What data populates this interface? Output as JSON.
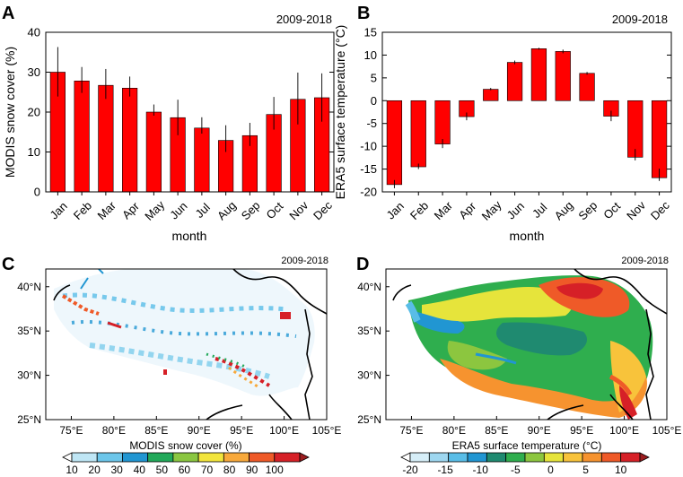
{
  "figure": {
    "colors": {
      "bar": "#ff0000",
      "axis": "#000000",
      "background": "#ffffff",
      "coastline": "#000000"
    }
  },
  "chart_data": [
    {
      "panel": "A",
      "type": "bar",
      "period": "2009-2018",
      "xlabel": "month",
      "ylabel": "MODIS snow cover (%)",
      "ylim": [
        0,
        40
      ],
      "yticks": [
        0,
        10,
        20,
        30,
        40
      ],
      "categories": [
        "Jan",
        "Feb",
        "Mar",
        "Apr",
        "May",
        "Jun",
        "Jul",
        "Aug",
        "Sep",
        "Oct",
        "Nov",
        "Dec"
      ],
      "values": [
        30.0,
        27.8,
        26.7,
        26.0,
        20.0,
        18.6,
        16.0,
        12.9,
        14.1,
        19.4,
        23.2,
        23.6
      ],
      "error_low": [
        23.9,
        24.8,
        23.3,
        23.9,
        19.1,
        14.2,
        14.6,
        10.0,
        11.5,
        15.6,
        16.9,
        17.6
      ],
      "error_high": [
        36.3,
        31.3,
        30.8,
        28.9,
        21.9,
        23.1,
        18.7,
        16.7,
        17.3,
        23.8,
        29.9,
        29.7
      ]
    },
    {
      "panel": "B",
      "type": "bar",
      "period": "2009-2018",
      "xlabel": "month",
      "ylabel": "ERA5 surface temperature (°C)",
      "ylim": [
        -20,
        15
      ],
      "yticks": [
        -20,
        -15,
        -10,
        -5,
        0,
        5,
        10,
        15
      ],
      "categories": [
        "Jan",
        "Feb",
        "Mar",
        "Apr",
        "May",
        "Jun",
        "Jul",
        "Aug",
        "Sep",
        "Oct",
        "Nov",
        "Dec"
      ],
      "values": [
        -18.4,
        -14.5,
        -9.5,
        -3.5,
        2.5,
        8.4,
        11.4,
        10.8,
        6.0,
        -3.4,
        -12.4,
        -16.9
      ],
      "error_low": [
        -19.2,
        -15.0,
        -10.4,
        -4.3,
        2.3,
        8.0,
        11.2,
        10.4,
        5.7,
        -4.5,
        -13.1,
        -17.6
      ],
      "error_high": [
        -17.4,
        -13.8,
        -8.4,
        -2.6,
        2.8,
        8.8,
        11.6,
        11.2,
        6.3,
        -2.2,
        -10.6,
        -14.9
      ]
    },
    {
      "panel": "C",
      "type": "heatmap",
      "period": "2009-2018",
      "colorbar_label": "MODIS snow cover (%)",
      "lon_ticks": [
        "75°E",
        "80°E",
        "85°E",
        "90°E",
        "95°E",
        "100°E",
        "105°E"
      ],
      "lat_ticks": [
        "40°N",
        "35°N",
        "30°N",
        "25°N"
      ],
      "lon_range": [
        72,
        105
      ],
      "lat_range": [
        25,
        42
      ],
      "colorbar_ticks": [
        "10",
        "20",
        "30",
        "40",
        "50",
        "60",
        "70",
        "80",
        "90",
        "100"
      ],
      "colorbar_colors": [
        "#ffffff",
        "#bfe6f5",
        "#6cc6ea",
        "#2196d2",
        "#22a95a",
        "#8ac641",
        "#f2e53c",
        "#f8a93b",
        "#ef5a28",
        "#d62027",
        "#9b1c1f"
      ]
    },
    {
      "panel": "D",
      "type": "heatmap",
      "period": "2009-2018",
      "colorbar_label": "ERA5 surface temperature (°C)",
      "lon_ticks": [
        "75°E",
        "80°E",
        "85°E",
        "90°E",
        "95°E",
        "100°E",
        "105°E"
      ],
      "lat_ticks": [
        "40°N",
        "35°N",
        "30°N",
        "25°N"
      ],
      "lon_range": [
        72,
        105
      ],
      "lat_range": [
        25,
        42
      ],
      "colorbar_ticks": [
        "-20",
        "-15",
        "-10",
        "-5",
        "0",
        "5",
        "10"
      ],
      "colorbar_colors": [
        "#ffffff",
        "#d6eef8",
        "#9ed7f0",
        "#59bde7",
        "#2196d2",
        "#1f8a70",
        "#2fae4e",
        "#8cc63f",
        "#e6e43b",
        "#f8c33b",
        "#f6932f",
        "#ef5a28",
        "#d62027",
        "#9b1c1f"
      ]
    }
  ]
}
